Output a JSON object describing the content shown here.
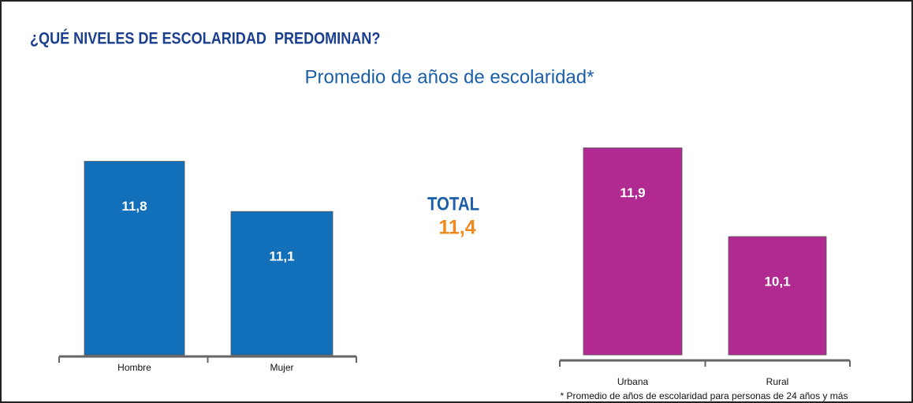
{
  "title": "¿QUÉ NIVELES DE ESCOLARIDAD  PREDOMINAN?",
  "subtitle": "Promedio de años de escolaridad*",
  "total": {
    "label": "TOTAL",
    "value": 11.4,
    "value_label": "11,4"
  },
  "footnote": "* Promedio de años de escolaridad para personas de 24 años y más",
  "chart_data": [
    {
      "type": "bar",
      "categories": [
        "Hombre",
        "Mujer"
      ],
      "values": [
        11.8,
        11.1
      ],
      "value_labels": [
        "11,8",
        "11,1"
      ],
      "color": "#1170b9",
      "ylim": [
        9.1,
        12.4
      ]
    },
    {
      "type": "bar",
      "categories": [
        "Urbana",
        "Rural"
      ],
      "values": [
        11.9,
        10.1
      ],
      "value_labels": [
        "11,9",
        "10,1"
      ],
      "color": "#b02a92",
      "ylim": [
        7.7,
        12.5
      ]
    }
  ]
}
